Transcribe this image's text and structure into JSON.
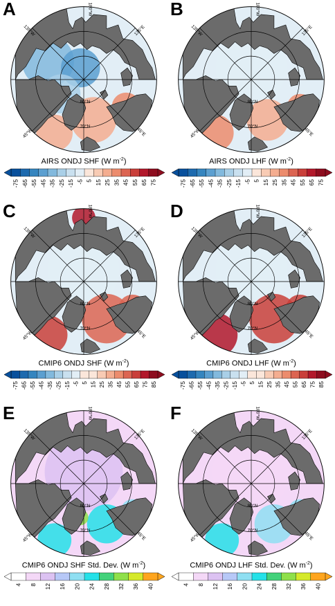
{
  "panels": [
    {
      "label": "A",
      "colorbar_title": "AIRS ONDJ SHF",
      "units_prefix": "W m",
      "units_exp": "-2",
      "ticks": [
        "-75",
        "-65",
        "-55",
        "-45",
        "-35",
        "-25",
        "-15",
        "-5",
        "5",
        "15",
        "25",
        "35",
        "45",
        "55",
        "65",
        "75"
      ],
      "scheme": "diverging"
    },
    {
      "label": "B",
      "colorbar_title": "AIRS ONDJ LHF",
      "units_prefix": "W m",
      "units_exp": "-2",
      "ticks": [
        "-75",
        "-65",
        "-55",
        "-45",
        "-35",
        "-25",
        "-15",
        "-5",
        "5",
        "15",
        "25",
        "35",
        "45",
        "55",
        "65",
        "75"
      ],
      "scheme": "diverging"
    },
    {
      "label": "C",
      "colorbar_title": "CMIP6 ONDJ SHF",
      "units_prefix": "W m",
      "units_exp": "-2",
      "ticks": [
        "-75",
        "-65",
        "-55",
        "-45",
        "-35",
        "-25",
        "-15",
        "-5",
        "5",
        "15",
        "25",
        "35",
        "45",
        "55",
        "65",
        "75",
        "85"
      ],
      "scheme": "diverging"
    },
    {
      "label": "D",
      "colorbar_title": "CMIP6 ONDJ LHF",
      "units_prefix": "W m",
      "units_exp": "-2",
      "ticks": [
        "-75",
        "-65",
        "-55",
        "-45",
        "-35",
        "-25",
        "-15",
        "-5",
        "5",
        "15",
        "25",
        "35",
        "45",
        "55",
        "65",
        "75",
        "85"
      ],
      "scheme": "diverging"
    },
    {
      "label": "E",
      "colorbar_title": "CMIP6 ONDJ SHF Std. Dev.",
      "units_prefix": "W m",
      "units_exp": "-2",
      "ticks": [
        "4",
        "8",
        "12",
        "16",
        "20",
        "24",
        "28",
        "32",
        "36",
        "40"
      ],
      "scheme": "sequential"
    },
    {
      "label": "F",
      "colorbar_title": "CMIP6 ONDJ LHF Std. Dev.",
      "units_prefix": "W m",
      "units_exp": "-2",
      "ticks": [
        "4",
        "8",
        "12",
        "16",
        "20",
        "24",
        "28",
        "32",
        "36",
        "40"
      ],
      "scheme": "sequential"
    }
  ],
  "map_labels": {
    "lon_180": "180°W",
    "lon_135w": "135°W",
    "lon_135e": "135°E",
    "lon_45w": "45°W",
    "lon_45e": "45°E",
    "lat_80": "80°N",
    "lat_70": "70°N"
  },
  "colors": {
    "land": "#6b6b6b",
    "diverging": [
      "#08509c",
      "#1d6aae",
      "#3585bf",
      "#5b9fd0",
      "#82b9dd",
      "#a9cfe7",
      "#c9e0ef",
      "#e2eef6",
      "#fbe6da",
      "#f8cbb4",
      "#f4ad90",
      "#ec8c6d",
      "#dc6552",
      "#c93f3a",
      "#b2182b",
      "#8e0d1f"
    ],
    "sequential": [
      "#ffffff",
      "#f4d8f7",
      "#dcc2f2",
      "#b7c8f7",
      "#8fdff2",
      "#25e1e8",
      "#43d27b",
      "#8fe04a",
      "#d5e92b",
      "#ffa51e"
    ]
  }
}
